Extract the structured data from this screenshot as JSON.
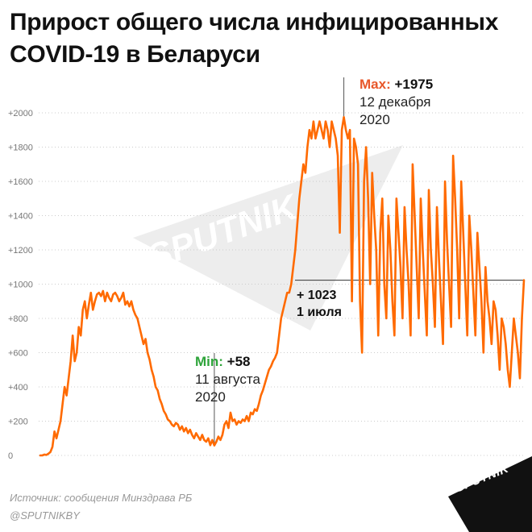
{
  "title": {
    "line1": "Прирост общего числа инфицированных",
    "line2": "COVID-19 в Беларуси"
  },
  "watermark_text": "SPUTNIK",
  "colors": {
    "line": "#ff6a00",
    "max_label": "#e8572a",
    "min_label": "#2ea43a",
    "grid": "#cccccc",
    "text": "#111111"
  },
  "annotations": {
    "max": {
      "label": "Max:",
      "value": "+1975",
      "date_line1": "12 декабря",
      "date_line2": "2020"
    },
    "min": {
      "label": "Min:",
      "value": "+58",
      "date_line1": "11 августа",
      "date_line2": "2020"
    },
    "latest": {
      "value": "+ 1023",
      "date": "1 июля"
    }
  },
  "footer": {
    "source": "Источник: сообщения Минздрава РБ",
    "handle": "@SPUTNIKBY"
  },
  "logo_text": "SPUTNIK",
  "chart_data": {
    "type": "line",
    "title": "Прирост общего числа инфицированных COVID-19 в Беларуси",
    "xlabel": "",
    "ylabel": "",
    "ylim": [
      0,
      2100
    ],
    "yticks": [
      0,
      200,
      400,
      600,
      800,
      1000,
      1200,
      1400,
      1600,
      1800,
      2000
    ],
    "ytick_labels": [
      "0",
      "+200",
      "+400",
      "+600",
      "+800",
      "+1000",
      "+1200",
      "+1400",
      "+1600",
      "+1800",
      "+2000"
    ],
    "grid": "horizontal dotted",
    "legend": "none",
    "series": [
      {
        "values": [
          0,
          0,
          5,
          3,
          10,
          20,
          50,
          140,
          100,
          150,
          200,
          300,
          400,
          350,
          450,
          550,
          700,
          550,
          600,
          750,
          700,
          850,
          900,
          800,
          880,
          950,
          850,
          900,
          940,
          950,
          930,
          960,
          900,
          950,
          920,
          900,
          940,
          950,
          930,
          900,
          920,
          950,
          880,
          900,
          870,
          900,
          850,
          820,
          800,
          750,
          700,
          650,
          680,
          600,
          560,
          500,
          460,
          400,
          380,
          330,
          300,
          260,
          240,
          210,
          200,
          180,
          170,
          190,
          180,
          150,
          170,
          140,
          160,
          130,
          150,
          120,
          100,
          130,
          110,
          90,
          120,
          90,
          80,
          100,
          60,
          90,
          58,
          80,
          110,
          90,
          120,
          180,
          200,
          160,
          250,
          200,
          210,
          180,
          200,
          190,
          210,
          200,
          230,
          200,
          250,
          240,
          270,
          260,
          300,
          350,
          380,
          420,
          460,
          500,
          520,
          550,
          570,
          600,
          700,
          800,
          850,
          900,
          950,
          950,
          1000,
          1100,
          1200,
          1350,
          1500,
          1600,
          1700,
          1650,
          1800,
          1900,
          1850,
          1950,
          1850,
          1900,
          1950,
          1900,
          1850,
          1950,
          1900,
          1800,
          1950,
          1900,
          1850,
          1750,
          1300,
          1900,
          1975,
          1900,
          1850,
          1900,
          900,
          1850,
          1800,
          1700,
          900,
          600,
          1600,
          1800,
          1500,
          1000,
          1650,
          1400,
          1200,
          700,
          1300,
          1500,
          1000,
          800,
          1400,
          1200,
          900,
          700,
          1500,
          1300,
          1100,
          800,
          1450,
          1200,
          1000,
          700,
          1700,
          1400,
          1100,
          800,
          1500,
          1200,
          950,
          700,
          1550,
          1200,
          1000,
          750,
          1450,
          1150,
          900,
          650,
          1600,
          1250,
          1000,
          750,
          1750,
          1500,
          1200,
          800,
          1600,
          1300,
          1000,
          700,
          1400,
          1200,
          950,
          700,
          1300,
          1100,
          900,
          600,
          1100,
          900,
          800,
          650,
          900,
          850,
          700,
          500,
          800,
          750,
          650,
          500,
          400,
          600,
          800,
          700,
          600,
          450,
          800,
          1023
        ]
      }
    ],
    "max_point": {
      "value": 1975,
      "date": "12 декабря 2020"
    },
    "min_point": {
      "value": 58,
      "date": "11 августа 2020"
    },
    "latest_point": {
      "value": 1023,
      "date": "1 июля"
    }
  }
}
